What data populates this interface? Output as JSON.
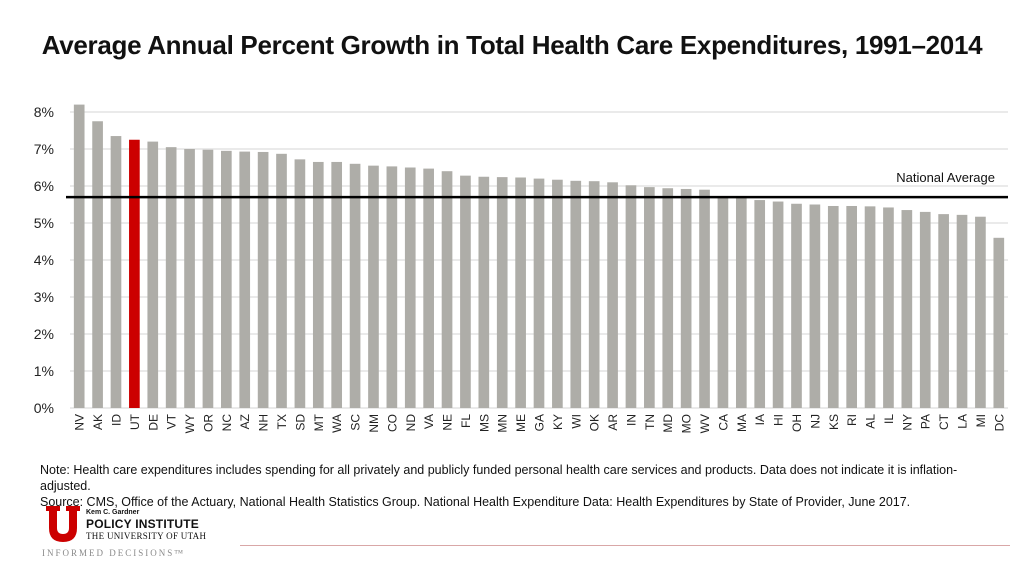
{
  "chart_data": {
    "type": "bar",
    "title": "Average Annual Percent Growth in Total Health Care Expenditures, 1991–2014",
    "xlabel": "",
    "ylabel": "",
    "ylim": [
      0,
      8.5
    ],
    "yticks": [
      0,
      1,
      2,
      3,
      4,
      5,
      6,
      7,
      8
    ],
    "ytick_labels": [
      "0%",
      "1%",
      "2%",
      "3%",
      "4%",
      "5%",
      "6%",
      "7%",
      "8%"
    ],
    "grid": true,
    "categories": [
      "NV",
      "AK",
      "ID",
      "UT",
      "DE",
      "VT",
      "WY",
      "OR",
      "NC",
      "AZ",
      "NH",
      "TX",
      "SD",
      "MT",
      "WA",
      "SC",
      "NM",
      "CO",
      "ND",
      "VA",
      "NE",
      "FL",
      "MS",
      "MN",
      "ME",
      "GA",
      "KY",
      "WI",
      "OK",
      "AR",
      "IN",
      "TN",
      "MD",
      "MO",
      "WV",
      "CA",
      "MA",
      "IA",
      "HI",
      "OH",
      "NJ",
      "KS",
      "RI",
      "AL",
      "IL",
      "NY",
      "PA",
      "CT",
      "LA",
      "MI",
      "DC"
    ],
    "values": [
      8.2,
      7.75,
      7.35,
      7.25,
      7.2,
      7.05,
      7.0,
      6.98,
      6.95,
      6.93,
      6.92,
      6.87,
      6.72,
      6.65,
      6.65,
      6.6,
      6.55,
      6.53,
      6.5,
      6.47,
      6.4,
      6.28,
      6.25,
      6.24,
      6.23,
      6.2,
      6.17,
      6.14,
      6.13,
      6.1,
      6.02,
      5.97,
      5.94,
      5.92,
      5.9,
      5.7,
      5.7,
      5.62,
      5.58,
      5.52,
      5.5,
      5.46,
      5.46,
      5.45,
      5.42,
      5.35,
      5.3,
      5.24,
      5.22,
      5.17,
      4.6
    ],
    "highlight": "UT",
    "bar_color": "#aeada8",
    "highlight_color": "#cc0000",
    "reference_line": {
      "label": "National Average",
      "value": 5.7
    }
  },
  "note": "Note: Health care expenditures includes spending for all privately and publicly funded personal health care services and products. Data does not indicate it is inflation-adjusted.",
  "source": "Source: CMS, Office of the Actuary, National Health Statistics Group. National Health Expenditure Data: Health Expenditures by State of Provider, June 2017.",
  "logo": {
    "kem": "Kem C. Gardner",
    "name": "POLICY INSTITUTE",
    "university": "THE UNIVERSITY OF UTAH",
    "tagline": "INFORMED DECISIONS™",
    "color": "#cc0000"
  }
}
